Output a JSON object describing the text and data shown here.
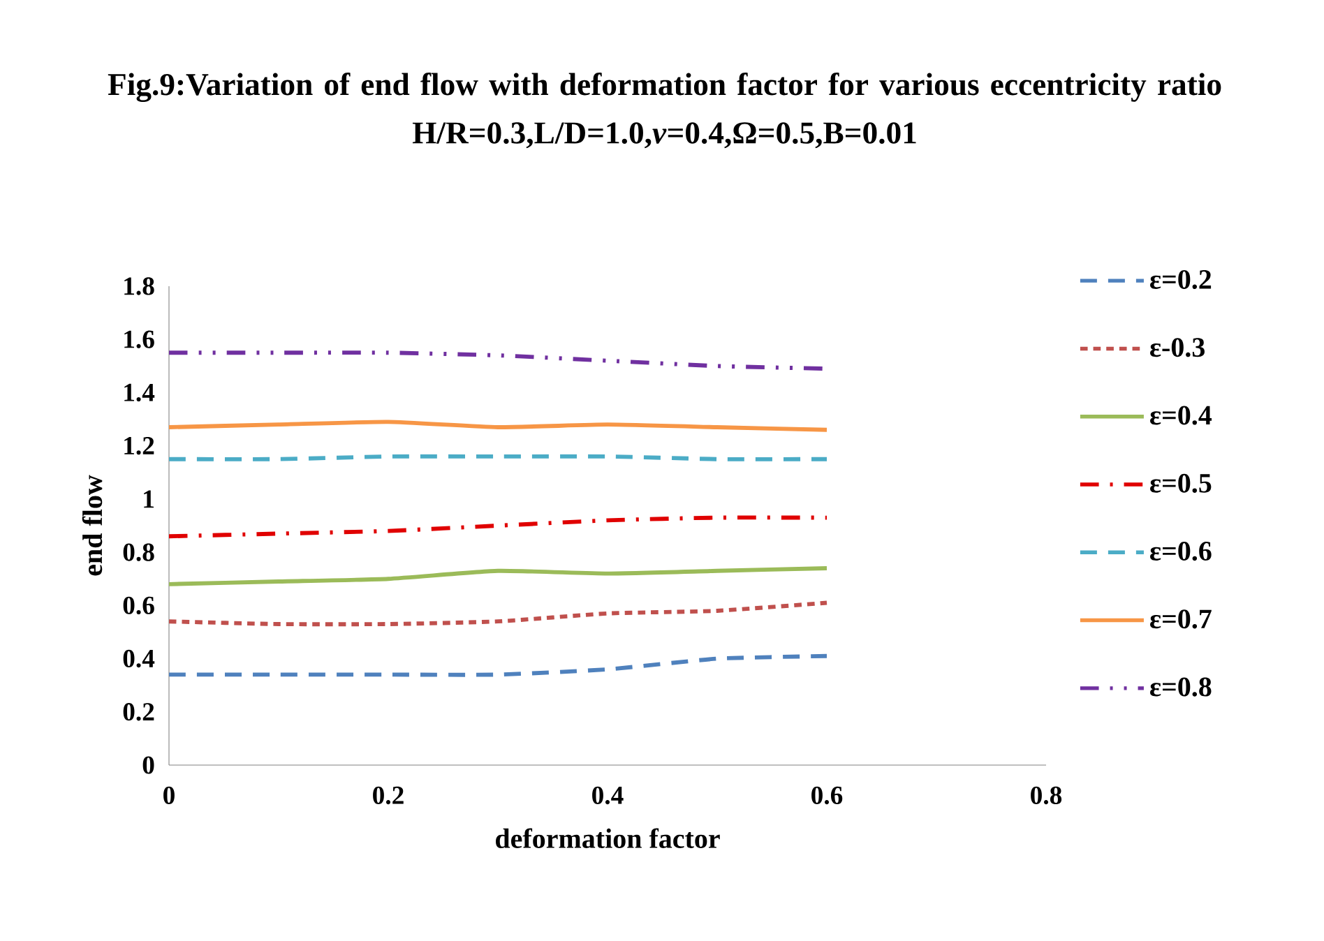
{
  "chart_data": {
    "type": "line",
    "title": "Fig.9:Variation of end flow with deformation factor for various eccentricity ratio",
    "subtitle": "H/R=0.3,L/D=1.0,*ν*=0.4,Ω=0.5,B=0.01",
    "xlabel": "deformation factor",
    "ylabel": "end flow",
    "x": [
      0,
      0.1,
      0.2,
      0.3,
      0.4,
      0.5,
      0.6
    ],
    "series": [
      {
        "name": "ε=0.2",
        "color": "#4f81bd",
        "line_style": "dashed",
        "values": [
          0.34,
          0.34,
          0.34,
          0.34,
          0.36,
          0.4,
          0.41
        ]
      },
      {
        "name": "ε-0.3",
        "color": "#c0504d",
        "line_style": "dotted",
        "values": [
          0.54,
          0.53,
          0.53,
          0.54,
          0.57,
          0.58,
          0.61
        ]
      },
      {
        "name": "ε=0.4",
        "color": "#9bbb59",
        "line_style": "solid",
        "values": [
          0.68,
          0.69,
          0.7,
          0.73,
          0.72,
          0.73,
          0.74
        ]
      },
      {
        "name": "ε=0.5",
        "color": "#e00000",
        "line_style": "dashdot",
        "values": [
          0.86,
          0.87,
          0.88,
          0.9,
          0.92,
          0.93,
          0.93
        ]
      },
      {
        "name": "ε=0.6",
        "color": "#4bacc6",
        "line_style": "dashed",
        "values": [
          1.15,
          1.15,
          1.16,
          1.16,
          1.16,
          1.15,
          1.15
        ]
      },
      {
        "name": "ε=0.7",
        "color": "#f79646",
        "line_style": "solid",
        "values": [
          1.27,
          1.28,
          1.29,
          1.27,
          1.28,
          1.27,
          1.26
        ]
      },
      {
        "name": "ε=0.8",
        "color": "#7030a0",
        "line_style": "dashdotdot",
        "values": [
          1.55,
          1.55,
          1.55,
          1.54,
          1.52,
          1.5,
          1.49
        ]
      }
    ],
    "xlim": [
      0,
      0.8
    ],
    "ylim": [
      0,
      1.8
    ],
    "xticks": [
      0,
      0.2,
      0.4,
      0.6,
      0.8
    ],
    "yticks": [
      0,
      0.2,
      0.4,
      0.6,
      0.8,
      1,
      1.2,
      1.4,
      1.6,
      1.8
    ],
    "grid": false,
    "legend": "right",
    "marker": "none"
  }
}
